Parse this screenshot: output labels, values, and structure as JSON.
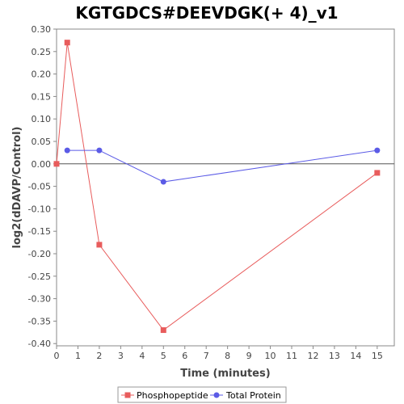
{
  "chart_data": {
    "type": "line",
    "title": "KGTGDCS#DEEVDGK(+ 4)_v1",
    "xlabel": "Time (minutes)",
    "ylabel": "log2(dDAVP/Control)",
    "xlim": [
      0,
      15.8
    ],
    "ylim": [
      -0.405,
      0.3
    ],
    "x_ticks": [
      0,
      1,
      2,
      3,
      4,
      5,
      6,
      7,
      8,
      9,
      10,
      11,
      12,
      13,
      14,
      15
    ],
    "y_ticks": [
      0.3,
      0.25,
      0.2,
      0.15,
      0.1,
      0.05,
      0.0,
      -0.05,
      -0.1,
      -0.15,
      -0.2,
      -0.25,
      -0.3,
      -0.35,
      -0.4
    ],
    "grid": false,
    "legend_position": "bottom",
    "series": [
      {
        "name": "Phosphopeptide",
        "color": "#e85c5c",
        "marker": "square",
        "points": [
          {
            "x": 0,
            "y": 0.0
          },
          {
            "x": 0.5,
            "y": 0.27
          },
          {
            "x": 2,
            "y": -0.18
          },
          {
            "x": 5,
            "y": -0.37
          },
          {
            "x": 15,
            "y": -0.02
          }
        ]
      },
      {
        "name": "Total Protein",
        "color": "#5b5be6",
        "marker": "circle",
        "points": [
          {
            "x": 0.5,
            "y": 0.03
          },
          {
            "x": 2,
            "y": 0.03
          },
          {
            "x": 5,
            "y": -0.04
          },
          {
            "x": 15,
            "y": 0.03
          }
        ]
      }
    ]
  }
}
